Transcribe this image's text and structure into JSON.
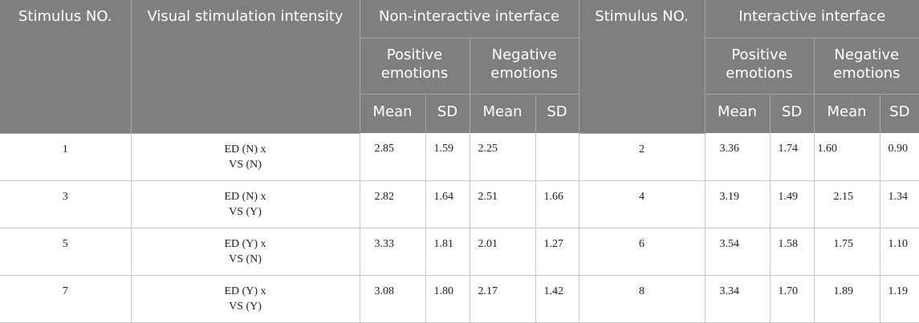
{
  "table": {
    "headers": {
      "stimulus_no": "Stimulus NO.",
      "visual_intensity": "Visual stimulation intensity",
      "non_interactive": "Non-interactive interface",
      "stimulus_no_2": "Stimulus NO.",
      "interactive": "Interactive interface",
      "positive": "Positive emotions",
      "negative": "Negative emotions",
      "mean": "Mean",
      "sd": "SD"
    },
    "rows": [
      {
        "stim": "1",
        "intensity_a": "ED (N) x",
        "intensity_b": "VS (N)",
        "ni_pos_mean": "2.85",
        "ni_pos_sd": "1.59",
        "ni_neg_mean": "2.25",
        "ni_neg_sd": "",
        "stim2": "2",
        "i_pos_mean": "3.36",
        "i_pos_sd": "1.74",
        "i_neg_mean": "1.60",
        "i_neg_sd": "0.90"
      },
      {
        "stim": "3",
        "intensity_a": "ED (N) x",
        "intensity_b": "VS (Y)",
        "ni_pos_mean": "2.82",
        "ni_pos_sd": "1.64",
        "ni_neg_mean": "2.51",
        "ni_neg_sd": "1.66",
        "stim2": "4",
        "i_pos_mean": "3.19",
        "i_pos_sd": "1.49",
        "i_neg_mean": "2.15",
        "i_neg_sd": "1.34"
      },
      {
        "stim": "5",
        "intensity_a": "ED (Y) x",
        "intensity_b": "VS (N)",
        "ni_pos_mean": "3.33",
        "ni_pos_sd": "1.81",
        "ni_neg_mean": "2.01",
        "ni_neg_sd": "1.27",
        "stim2": "6",
        "i_pos_mean": "3.54",
        "i_pos_sd": "1.58",
        "i_neg_mean": "1.75",
        "i_neg_sd": "1.10"
      },
      {
        "stim": "7",
        "intensity_a": "ED (Y) x",
        "intensity_b": "VS (Y)",
        "ni_pos_mean": "3.08",
        "ni_pos_sd": "1.80",
        "ni_neg_mean": "2.17",
        "ni_neg_sd": "1.42",
        "stim2": "8",
        "i_pos_mean": "3.34",
        "i_pos_sd": "1.70",
        "i_neg_mean": "1.89",
        "i_neg_sd": "1.19"
      }
    ]
  }
}
